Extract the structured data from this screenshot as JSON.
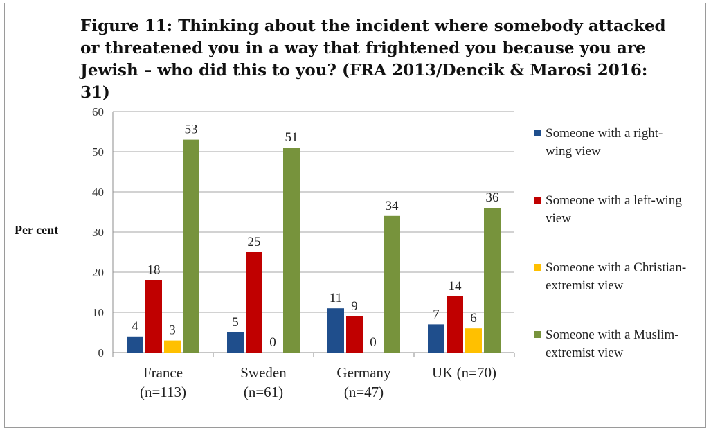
{
  "title": "Figure 11: Thinking about the incident where somebody attacked or threatened you in a way that frightened you because you are Jewish – who did this to you? (FRA 2013/Dencik & Marosi 2016: 31)",
  "chart_data": {
    "type": "bar",
    "title": "Figure 11: Thinking about the incident where somebody attacked or threatened you in a way that frightened you because you are Jewish – who did this to you? (FRA 2013/Dencik & Marosi 2016: 31)",
    "ylabel": "Per cent",
    "xlabel": "",
    "ylim": [
      0,
      60
    ],
    "yticks": [
      0,
      10,
      20,
      30,
      40,
      50,
      60
    ],
    "grid": true,
    "legend_position": "right",
    "categories": [
      [
        "France",
        "(n=113)"
      ],
      [
        "Sweden",
        "(n=61)"
      ],
      [
        "Germany",
        "(n=47)"
      ],
      [
        "UK (n=70)"
      ]
    ],
    "series": [
      {
        "name": "Someone with a right-wing view",
        "legend_lines": [
          "Someone with a right-",
          "wing view"
        ],
        "color": "#1f4e8c",
        "values": [
          4,
          5,
          11,
          7
        ]
      },
      {
        "name": "Someone with a left-wing view",
        "legend_lines": [
          "Someone with a left-wing",
          "view"
        ],
        "color": "#c00000",
        "values": [
          18,
          25,
          9,
          14
        ]
      },
      {
        "name": "Someone with a Christian-extremist view",
        "legend_lines": [
          "Someone with a Christian-",
          "extremist view"
        ],
        "color": "#ffc000",
        "values": [
          3,
          0,
          0,
          6
        ]
      },
      {
        "name": "Someone with a Muslim-extremist view",
        "legend_lines": [
          "Someone with a Muslim-",
          "extremist view"
        ],
        "color": "#77933c",
        "values": [
          53,
          51,
          34,
          36
        ]
      }
    ]
  }
}
